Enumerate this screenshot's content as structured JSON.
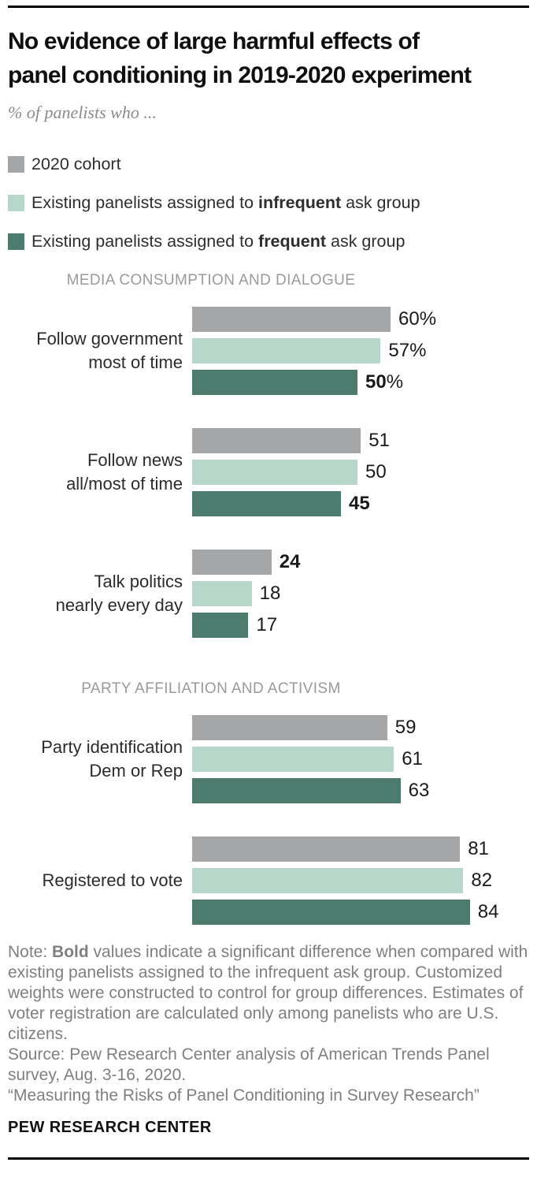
{
  "page": {
    "title": "No evidence of large harmful effects of panel conditioning in 2019-2020 experiment",
    "subtitle": "% of panelists who ...",
    "footer_brand": "PEW RESEARCH CENTER"
  },
  "colors": {
    "cohort2020": "#a5a6a7",
    "infrequent": "#b6d7ca",
    "frequent": "#4d7c6e"
  },
  "legend": {
    "items": [
      {
        "color_key": "cohort2020",
        "prefix": "2020 cohort",
        "bold": "",
        "suffix": ""
      },
      {
        "color_key": "infrequent",
        "prefix": "Existing panelists assigned to ",
        "bold": "infrequent",
        "suffix": " ask group"
      },
      {
        "color_key": "frequent",
        "prefix": "Existing panelists assigned to ",
        "bold": "frequent",
        "suffix": " ask group"
      }
    ]
  },
  "chart_data": {
    "type": "bar",
    "orientation": "horizontal",
    "unit": "% of panelists",
    "value_range": [
      0,
      100
    ],
    "grid": false,
    "legend_position": "top-left",
    "series_names": [
      "2020 cohort",
      "Existing panelists assigned to infrequent ask group",
      "Existing panelists assigned to frequent ask group"
    ],
    "sections": [
      {
        "title": "MEDIA CONSUMPTION AND DIALOGUE",
        "groups": [
          {
            "label_lines": [
              "Follow government",
              "most of time"
            ],
            "bars": [
              {
                "series_key": "cohort2020",
                "value": 60,
                "label": "60",
                "label_suffix": "%",
                "bold": false
              },
              {
                "series_key": "infrequent",
                "value": 57,
                "label": "57",
                "label_suffix": "%",
                "bold": false
              },
              {
                "series_key": "frequent",
                "value": 50,
                "label": "50",
                "label_suffix": "%",
                "bold": true
              }
            ]
          },
          {
            "label_lines": [
              "Follow news",
              "all/most of time"
            ],
            "bars": [
              {
                "series_key": "cohort2020",
                "value": 51,
                "label": "51",
                "label_suffix": "",
                "bold": false
              },
              {
                "series_key": "infrequent",
                "value": 50,
                "label": "50",
                "label_suffix": "",
                "bold": false
              },
              {
                "series_key": "frequent",
                "value": 45,
                "label": "45",
                "label_suffix": "",
                "bold": true
              }
            ]
          },
          {
            "label_lines": [
              "Talk politics",
              "nearly every day"
            ],
            "bars": [
              {
                "series_key": "cohort2020",
                "value": 24,
                "label": "24",
                "label_suffix": "",
                "bold": true
              },
              {
                "series_key": "infrequent",
                "value": 18,
                "label": "18",
                "label_suffix": "",
                "bold": false
              },
              {
                "series_key": "frequent",
                "value": 17,
                "label": "17",
                "label_suffix": "",
                "bold": false
              }
            ]
          }
        ]
      },
      {
        "title": "PARTY AFFILIATION AND ACTIVISM",
        "groups": [
          {
            "label_lines": [
              "Party identification",
              "Dem or Rep"
            ],
            "bars": [
              {
                "series_key": "cohort2020",
                "value": 59,
                "label": "59",
                "label_suffix": "",
                "bold": false
              },
              {
                "series_key": "infrequent",
                "value": 61,
                "label": "61",
                "label_suffix": "",
                "bold": false
              },
              {
                "series_key": "frequent",
                "value": 63,
                "label": "63",
                "label_suffix": "",
                "bold": false
              }
            ]
          },
          {
            "label_lines": [
              "Registered to vote"
            ],
            "bars": [
              {
                "series_key": "cohort2020",
                "value": 81,
                "label": "81",
                "label_suffix": "",
                "bold": false
              },
              {
                "series_key": "infrequent",
                "value": 82,
                "label": "82",
                "label_suffix": "",
                "bold": false
              },
              {
                "series_key": "frequent",
                "value": 84,
                "label": "84",
                "label_suffix": "",
                "bold": false
              }
            ]
          }
        ]
      }
    ]
  },
  "note": {
    "prefix": "Note: ",
    "bold": "Bold",
    "rest": " values indicate a significant difference when compared with existing panelists assigned to the infrequent ask group. Customized weights were constructed to control for group differences. Estimates of voter registration are calculated only among panelists who are U.S. citizens.",
    "source": "Source: Pew Research Center analysis of American Trends Panel survey, Aug. 3-16, 2020.",
    "quote": "“Measuring the Risks of Panel Conditioning in Survey Research”"
  }
}
